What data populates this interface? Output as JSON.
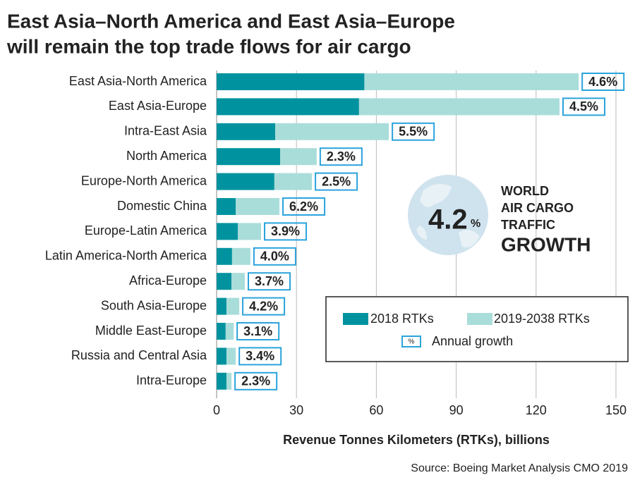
{
  "chart_data": {
    "type": "bar",
    "orientation": "horizontal",
    "stacked": true,
    "title": [
      "East Asia–North America and East Asia–Europe",
      "will remain the top trade flows for air cargo"
    ],
    "categories": [
      "East Asia-North America",
      "East Asia-Europe",
      "Intra-East Asia",
      "North America",
      "Europe-North America",
      "Domestic China",
      "Europe-Latin America",
      "Latin America-North America",
      "Africa-Europe",
      "South Asia-Europe",
      "Middle East-Europe",
      "Russia and Central Asia",
      "Intra-Europe"
    ],
    "series": [
      {
        "name": "2018 RTKs",
        "color": "#00939f",
        "values": [
          55.5,
          53.5,
          22,
          23.9,
          21.7,
          7.2,
          8,
          5.8,
          5.6,
          3.7,
          3.4,
          3.7,
          3.7
        ]
      },
      {
        "name": "2019-2038 RTKs",
        "color": "#a9ddda",
        "values": [
          80.5,
          75.3,
          42.7,
          13.7,
          14.1,
          16.4,
          8.7,
          6.9,
          5,
          4.8,
          3,
          3.5,
          1.9
        ]
      }
    ],
    "growth_labels": [
      "4.6%",
      "4.5%",
      "5.5%",
      "2.3%",
      "2.5%",
      "6.2%",
      "3.9%",
      "4.0%",
      "3.7%",
      "4.2%",
      "3.1%",
      "3.4%",
      "2.3%"
    ],
    "growth_legend": {
      "symbol": "%",
      "label": "Annual growth"
    },
    "xlim": [
      0,
      150
    ],
    "xticks": [
      0,
      30,
      60,
      90,
      120,
      150
    ],
    "grid": true,
    "xlabel": "Revenue Tonnes Kilometers (RTKs), billions",
    "source": "Source: Boeing Market Analysis CMO 2019",
    "callout": {
      "value": "4.2",
      "unit": "%",
      "lines": [
        "WORLD",
        "AIR CARGO",
        "TRAFFIC",
        "GROWTH"
      ]
    }
  }
}
